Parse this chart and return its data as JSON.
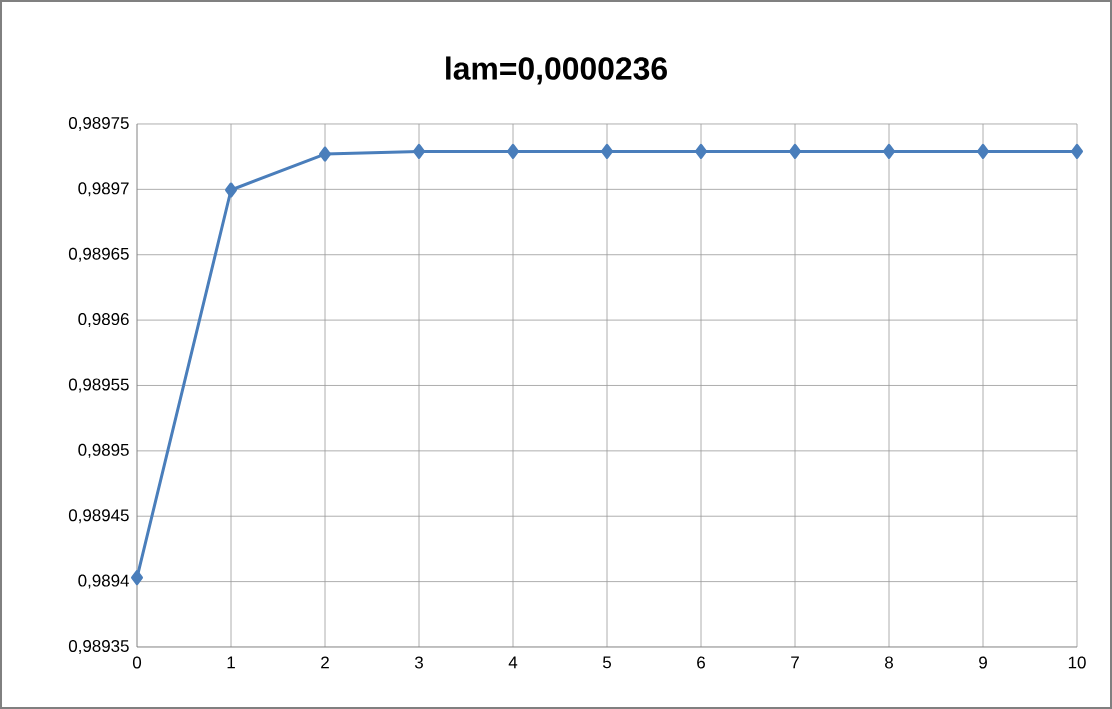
{
  "chart_data": {
    "type": "line",
    "title": "lam=0,0000236",
    "x": [
      0,
      1,
      2,
      3,
      4,
      5,
      6,
      7,
      8,
      9,
      10
    ],
    "series": [
      {
        "color": "#4a7ebb",
        "values": [
          0.989403,
          0.9896995,
          0.989727,
          0.989729,
          0.989729,
          0.989729,
          0.989729,
          0.989729,
          0.989729,
          0.989729,
          0.989729
        ]
      }
    ],
    "xlim": [
      0,
      10
    ],
    "xticks": [
      0,
      1,
      2,
      3,
      4,
      5,
      6,
      7,
      8,
      9,
      10
    ],
    "ylim": [
      0.98935,
      0.98975
    ],
    "yticks": [
      {
        "value": 0.98935,
        "label": "0,98935"
      },
      {
        "value": 0.9894,
        "label": "0,9894"
      },
      {
        "value": 0.98945,
        "label": "0,98945"
      },
      {
        "value": 0.9895,
        "label": "0,9895"
      },
      {
        "value": 0.98955,
        "label": "0,98955"
      },
      {
        "value": 0.9896,
        "label": "0,9896"
      },
      {
        "value": 0.98965,
        "label": "0,98965"
      },
      {
        "value": 0.9897,
        "label": "0,9897"
      },
      {
        "value": 0.98975,
        "label": "0,98975"
      }
    ],
    "grid": true,
    "marker": "diamond",
    "line_style": "solid"
  }
}
